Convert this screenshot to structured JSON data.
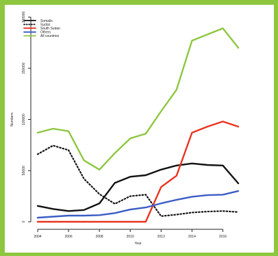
{
  "chart_data": {
    "type": "line",
    "title": "",
    "xlabel": "Year",
    "ylabel": "Numbers",
    "x": [
      2004,
      2005,
      2006,
      2007,
      2008,
      2009,
      2010,
      2011,
      2012,
      2013,
      2014,
      2015,
      2016,
      2017
    ],
    "xlim": [
      2004,
      2017
    ],
    "ylim": [
      0,
      200000
    ],
    "x_ticks": [
      2004,
      2006,
      2008,
      2010,
      2012,
      2014,
      2016
    ],
    "x_tick_labels": [
      "2004",
      "2006",
      "2008",
      "2010",
      "2012",
      "2014",
      "2016"
    ],
    "y_ticks": [
      0,
      50000,
      100000,
      150000,
      200000
    ],
    "y_tick_labels": [
      "0",
      "50000",
      "100000",
      "150000",
      "200000"
    ],
    "grid": false,
    "legend_position": "top-left",
    "series": [
      {
        "name": "Somalis",
        "color": "#111111",
        "dash": "solid",
        "values": [
          15500,
          12500,
          10500,
          11500,
          18000,
          38000,
          44000,
          45500,
          51000,
          55000,
          57000,
          55500,
          55000,
          37500
        ]
      },
      {
        "name": "Sudan",
        "color": "#111111",
        "dash": "dotted",
        "values": [
          66000,
          74500,
          70000,
          42000,
          27000,
          17500,
          25000,
          26500,
          5500,
          7000,
          9000,
          10000,
          10500,
          9500
        ]
      },
      {
        "name": "South Sudan",
        "color": "#e8321e",
        "dash": "solid",
        "values": [
          0,
          0,
          0,
          0,
          0,
          0,
          0,
          0,
          34000,
          45000,
          87000,
          93000,
          98000,
          93000
        ]
      },
      {
        "name": "Others",
        "color": "#3b5bc4",
        "dash": "solid",
        "values": [
          4000,
          5000,
          6000,
          6000,
          6500,
          8500,
          12000,
          14000,
          18000,
          21500,
          24500,
          26000,
          26500,
          30000
        ]
      },
      {
        "name": "All countries",
        "color": "#8dc63f",
        "dash": "solid",
        "values": [
          87000,
          91000,
          88500,
          60000,
          51000,
          67000,
          81500,
          86000,
          108000,
          129000,
          177000,
          183000,
          189000,
          170000
        ]
      }
    ]
  }
}
